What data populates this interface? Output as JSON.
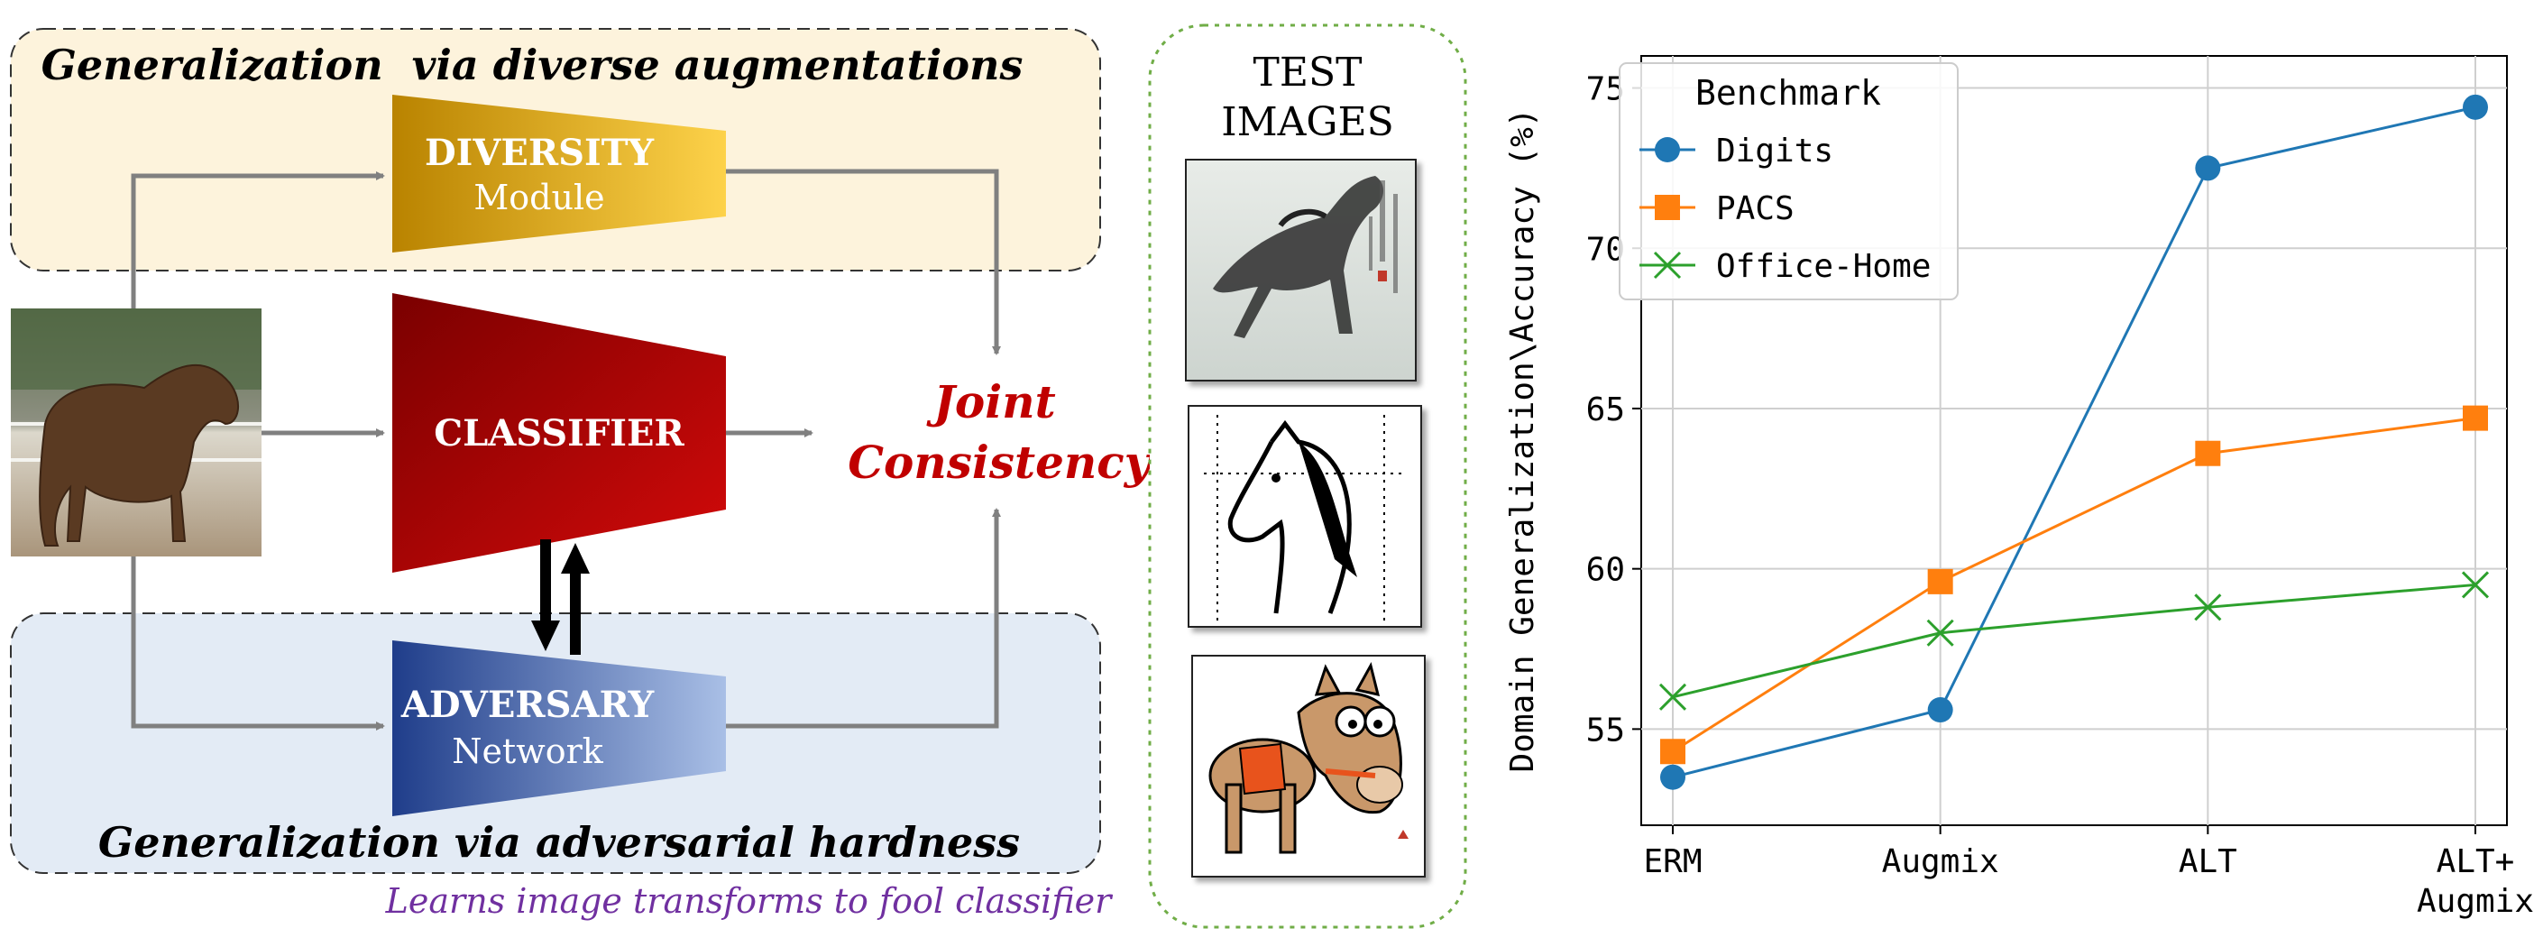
{
  "left_panel": {
    "top_region_title": "Generalization  via diverse augmentations",
    "bottom_region_title": "Generalization via adversarial hardness",
    "bottom_note": "Learns image transforms to fool classifier",
    "diversity": {
      "title": "DIVERSITY",
      "subtitle": "Module"
    },
    "classifier": {
      "title": "CLASSIFIER"
    },
    "adversary": {
      "title": "ADVERSARY",
      "subtitle": "Network"
    },
    "joint_line1": "Joint",
    "joint_line2": "Consistency"
  },
  "test_panel": {
    "title_line1": "TEST",
    "title_line2": "IMAGES"
  },
  "colors": {
    "top_region_fill": "#fdf3dc",
    "bottom_region_fill": "#e3ebf5",
    "diversity_from": "#b98300",
    "diversity_to": "#fdd24a",
    "classifier_from": "#7a0000",
    "classifier_to": "#d40a0a",
    "adversary_from": "#1f3d8a",
    "adversary_to": "#a9bfe6",
    "joint_text": "#c00000",
    "note_text": "#7030a0",
    "test_border": "#70ad47"
  },
  "chart_data": {
    "type": "line",
    "categories": [
      "ERM",
      "Augmix",
      "ALT",
      "ALT+\nAugmix"
    ],
    "ylabel": "Domain Generalization\\Accuracy (%)",
    "xlabel": "",
    "ylim": [
      52,
      76
    ],
    "yticks": [
      55,
      60,
      65,
      70,
      75
    ],
    "grid": true,
    "legend": {
      "title": "Benchmark",
      "placement": "top-left"
    },
    "series": [
      {
        "name": "Digits",
        "values": [
          53.5,
          55.6,
          72.5,
          74.4
        ],
        "color": "#1f77b4",
        "marker": "circle"
      },
      {
        "name": "PACS",
        "values": [
          54.3,
          59.6,
          63.6,
          64.7
        ],
        "color": "#ff7f0e",
        "marker": "square"
      },
      {
        "name": "Office-Home",
        "values": [
          56.0,
          58.0,
          58.8,
          59.5
        ],
        "color": "#2ca02c",
        "marker": "x"
      }
    ]
  }
}
